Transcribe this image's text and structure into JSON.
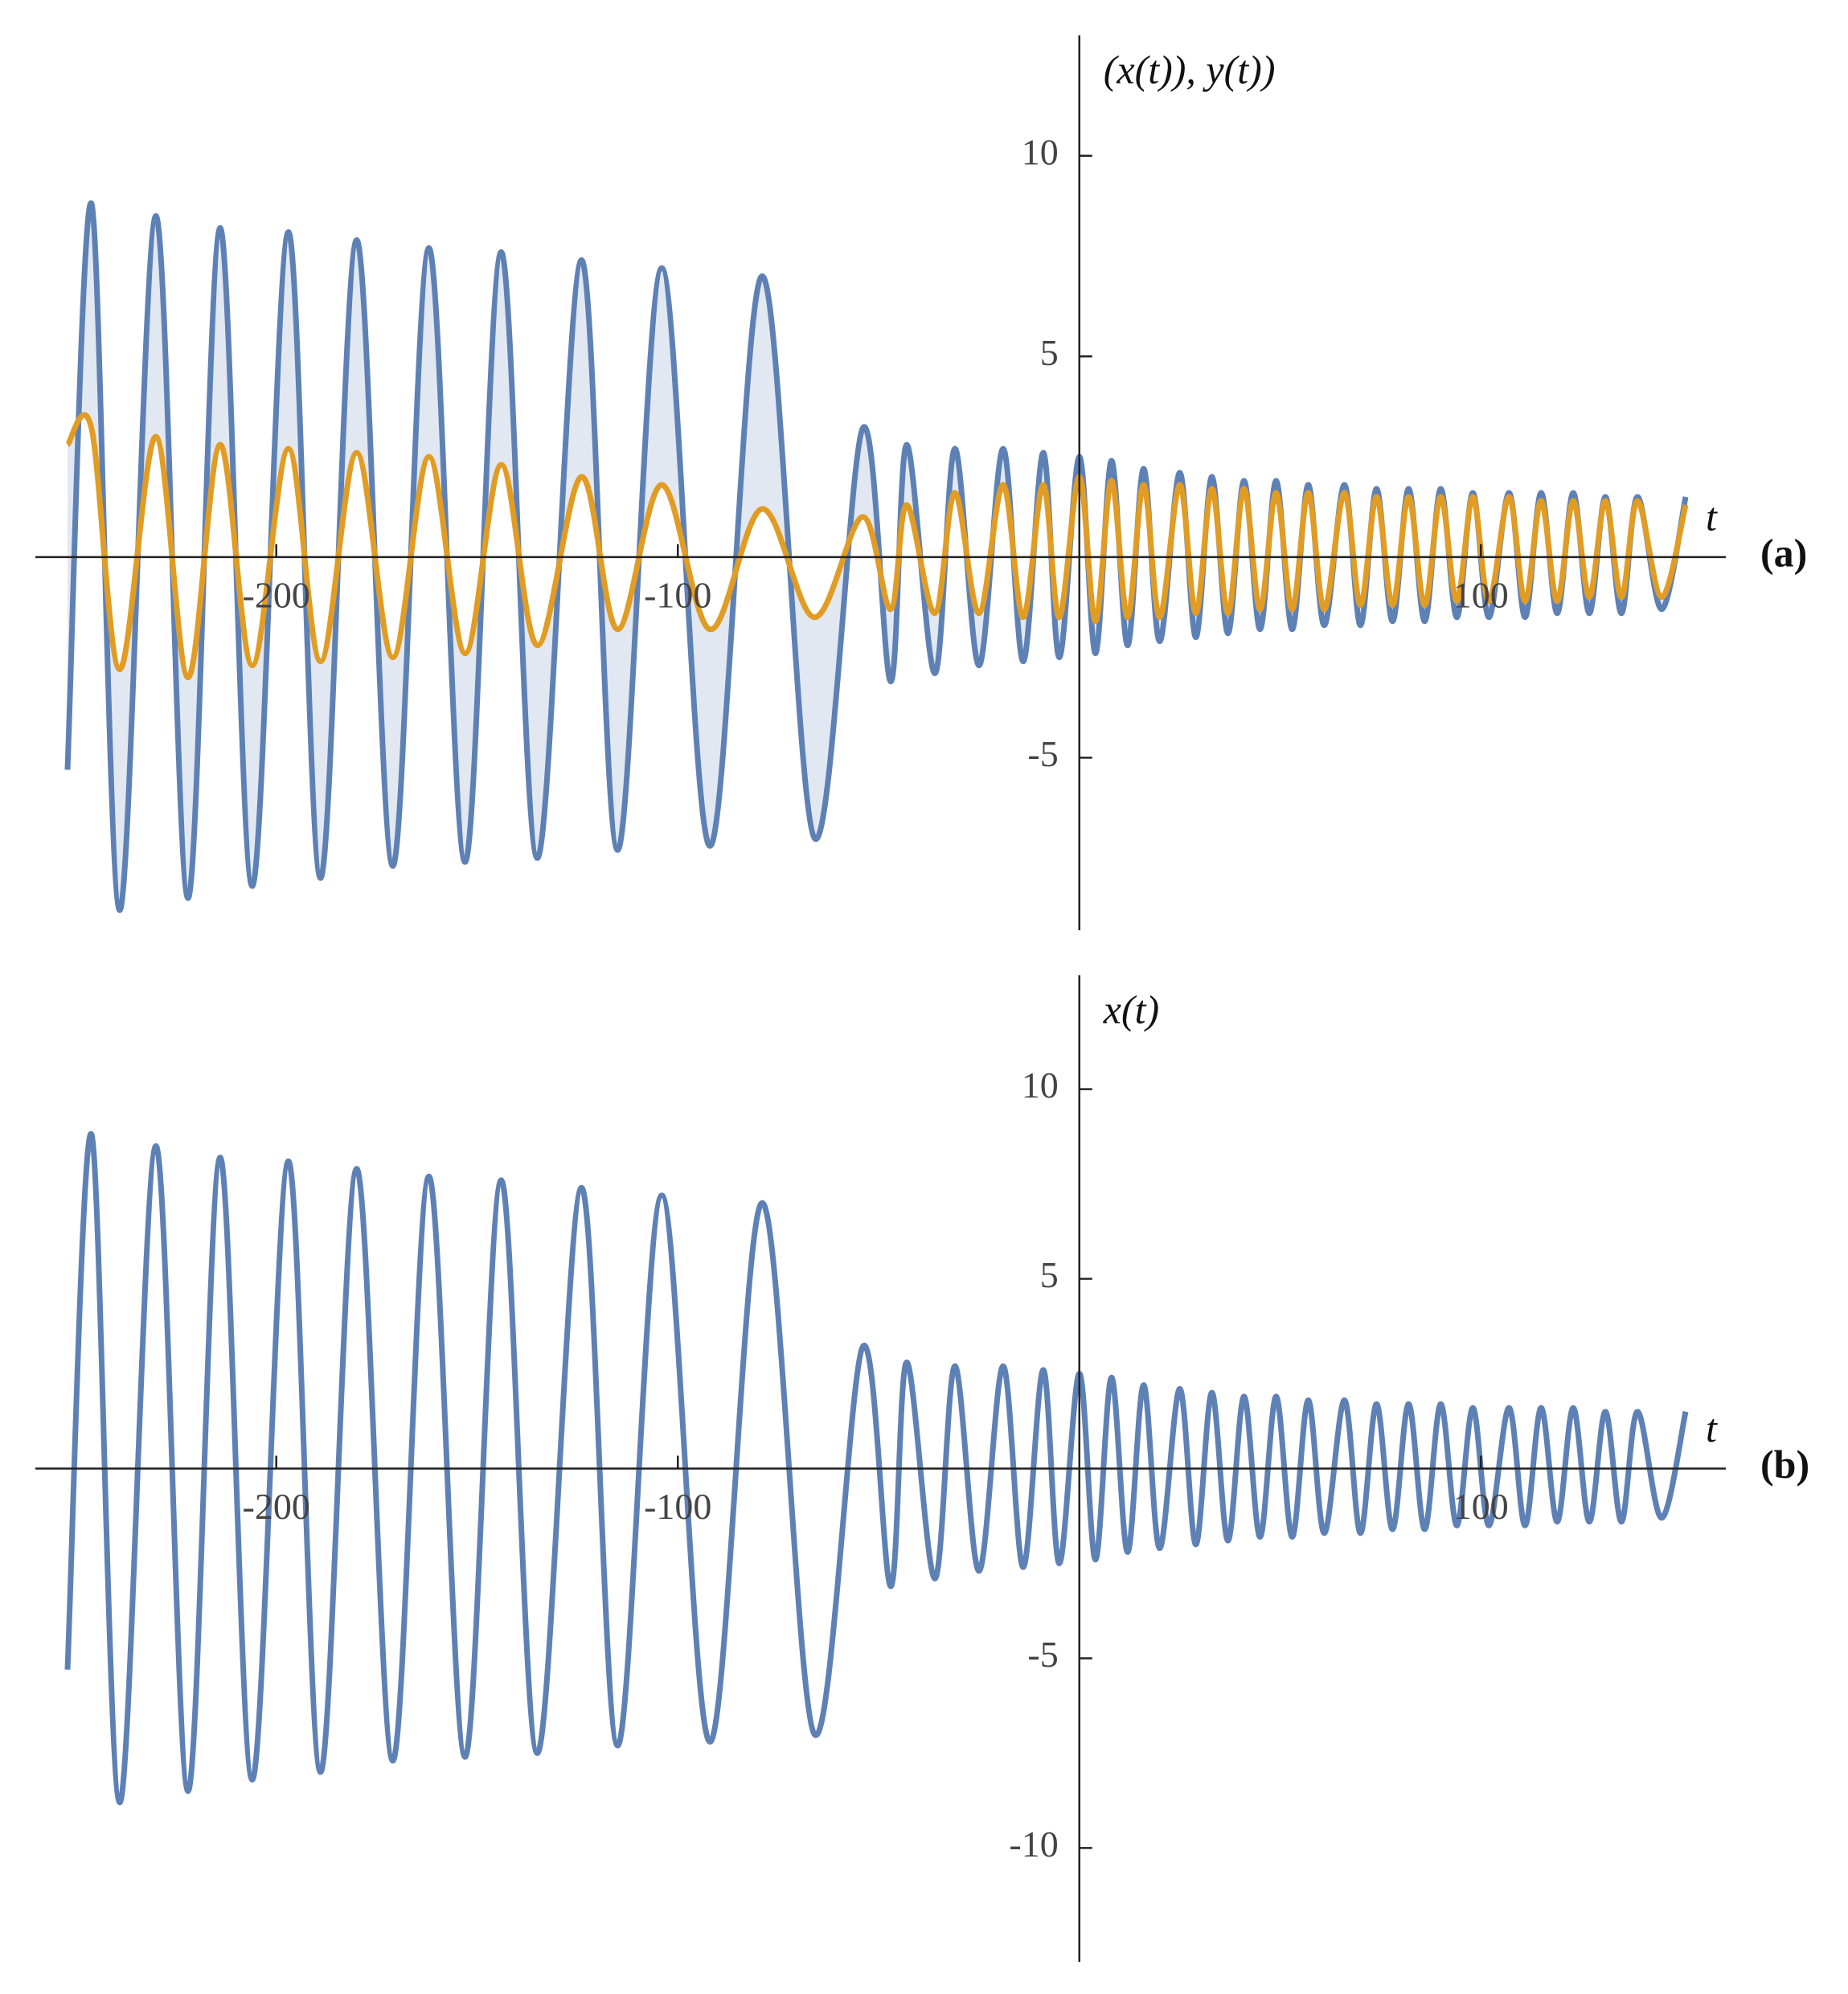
{
  "chart_data": [
    {
      "type": "line",
      "ylabel": "(x(t)), y(t))",
      "xlabel": "t",
      "panel_label": "(a)",
      "fill_between": true,
      "fill_color": "#d5deed",
      "xlim": [
        -260,
        161
      ],
      "ylim": [
        -9.3,
        13
      ],
      "xticks": [
        -200,
        -100,
        100
      ],
      "yticks": [
        -5,
        5,
        10
      ],
      "x": [
        -252,
        -246,
        -239,
        -230,
        -222,
        -214,
        -206,
        -197,
        -189,
        -180,
        -171,
        -162,
        -153,
        -144,
        -135,
        -124,
        -115,
        -104,
        -92,
        -79,
        -66,
        -54,
        -47,
        -43,
        -36,
        -31,
        -25,
        -19,
        -14,
        -9,
        -5,
        0,
        4,
        8,
        12,
        16,
        20,
        25,
        29,
        33,
        37,
        41,
        45,
        49,
        53,
        57,
        61,
        66,
        70,
        74,
        78,
        82,
        86,
        90,
        94,
        98,
        102,
        107,
        111,
        115,
        119,
        123,
        127,
        131,
        135,
        139,
        145,
        151
      ],
      "series": [
        {
          "name": "x(t)",
          "color": "#5e81b5",
          "values": [
            -5.3,
            8.8,
            -8.8,
            8.5,
            -8.5,
            8.2,
            -8.2,
            8.1,
            -8.0,
            7.9,
            -7.7,
            7.7,
            -7.6,
            7.6,
            -7.5,
            7.4,
            -7.3,
            7.2,
            -7.2,
            7.0,
            -7.0,
            3.2,
            -3.1,
            2.8,
            -2.9,
            2.7,
            -2.7,
            2.7,
            -2.6,
            2.6,
            -2.5,
            2.5,
            -2.4,
            2.4,
            -2.2,
            2.2,
            -2.1,
            2.1,
            -2.0,
            2.0,
            -1.9,
            1.9,
            -1.8,
            1.9,
            -1.8,
            1.8,
            -1.7,
            1.8,
            -1.7,
            1.7,
            -1.6,
            1.7,
            -1.6,
            1.7,
            -1.5,
            1.6,
            -1.5,
            1.6,
            -1.5,
            1.6,
            -1.4,
            1.6,
            -1.4,
            1.5,
            -1.4,
            1.5,
            -1.3,
            1.5
          ]
        },
        {
          "name": "y(t)",
          "color": "#e19c24",
          "values": [
            2.8,
            3.2,
            -2.8,
            3.0,
            -3.0,
            2.8,
            -2.7,
            2.7,
            -2.6,
            2.6,
            -2.5,
            2.5,
            -2.4,
            2.3,
            -2.2,
            2.0,
            -1.8,
            1.8,
            -1.8,
            1.2,
            -1.5,
            1.0,
            -1.3,
            1.3,
            -1.4,
            1.6,
            -1.4,
            1.8,
            -1.5,
            1.8,
            -1.5,
            2.0,
            -1.6,
            1.9,
            -1.5,
            1.8,
            -1.5,
            1.8,
            -1.4,
            1.7,
            -1.4,
            1.7,
            -1.3,
            1.6,
            -1.3,
            1.6,
            -1.3,
            1.6,
            -1.2,
            1.5,
            -1.2,
            1.5,
            -1.2,
            1.5,
            -1.1,
            1.5,
            -1.1,
            1.5,
            -1.1,
            1.4,
            -1.1,
            1.4,
            -1.0,
            1.4,
            -1.0,
            1.4,
            -1.0,
            1.3
          ]
        }
      ]
    },
    {
      "type": "line",
      "ylabel": "x(t)",
      "xlabel": "t",
      "panel_label": "(b)",
      "xlim": [
        -260,
        161
      ],
      "ylim": [
        -13,
        13
      ],
      "xticks": [
        -200,
        -100,
        100
      ],
      "yticks": [
        -10,
        -5,
        5,
        10
      ],
      "x": [
        -252,
        -246,
        -239,
        -230,
        -222,
        -214,
        -206,
        -197,
        -189,
        -180,
        -171,
        -162,
        -153,
        -144,
        -135,
        -124,
        -115,
        -104,
        -92,
        -79,
        -66,
        -54,
        -47,
        -43,
        -36,
        -31,
        -25,
        -19,
        -14,
        -9,
        -5,
        0,
        4,
        8,
        12,
        16,
        20,
        25,
        29,
        33,
        37,
        41,
        45,
        49,
        53,
        57,
        61,
        66,
        70,
        74,
        78,
        82,
        86,
        90,
        94,
        98,
        102,
        107,
        111,
        115,
        119,
        123,
        127,
        131,
        135,
        139,
        145,
        151
      ],
      "series": [
        {
          "name": "x(t)",
          "color": "#5e81b5",
          "values": [
            -5.3,
            8.8,
            -8.8,
            8.5,
            -8.5,
            8.2,
            -8.2,
            8.1,
            -8.0,
            7.9,
            -7.7,
            7.7,
            -7.6,
            7.6,
            -7.5,
            7.4,
            -7.3,
            7.2,
            -7.2,
            7.0,
            -7.0,
            3.2,
            -3.1,
            2.8,
            -2.9,
            2.7,
            -2.7,
            2.7,
            -2.6,
            2.6,
            -2.5,
            2.5,
            -2.4,
            2.4,
            -2.2,
            2.2,
            -2.1,
            2.1,
            -2.0,
            2.0,
            -1.9,
            1.9,
            -1.8,
            1.9,
            -1.8,
            1.8,
            -1.7,
            1.8,
            -1.7,
            1.7,
            -1.6,
            1.7,
            -1.6,
            1.7,
            -1.5,
            1.6,
            -1.5,
            1.6,
            -1.5,
            1.6,
            -1.4,
            1.6,
            -1.4,
            1.5,
            -1.4,
            1.5,
            -1.3,
            1.5
          ]
        }
      ]
    }
  ]
}
